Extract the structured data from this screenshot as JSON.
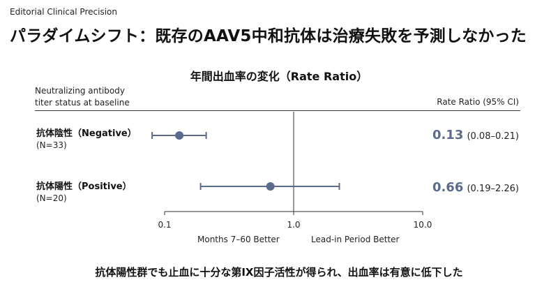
{
  "header": {
    "kicker": "Editorial Clinical Precision",
    "title": "パラダイムシフト：既存のAAV5中和抗体は治療失敗を予測しなかった"
  },
  "chart_data": {
    "type": "forest",
    "title": "年間出血率の変化（Rate Ratio）",
    "left_column_header": "Neutralizing antibody\ntiter status at baseline",
    "right_column_header": "Rate Ratio (95% CI)",
    "x_scale": "log",
    "xlim": [
      0.1,
      10.0
    ],
    "reference_line": 1.0,
    "tick_labels": [
      "0.1",
      "1.0",
      "10.0"
    ],
    "tick_values": [
      0.1,
      1.0,
      10.0
    ],
    "axis_left_label": "Months 7–60 Better",
    "axis_right_label": "Lead-in Period Better",
    "rows": [
      {
        "label": "抗体陰性（Negative）",
        "n": "(N=33)",
        "estimate": 0.13,
        "lower": 0.08,
        "upper": 0.21,
        "estimate_text": "0.13",
        "ci_text": "(0.08–0.21)"
      },
      {
        "label": "抗体陽性（Positive）",
        "n": "(N=20)",
        "estimate": 0.66,
        "lower": 0.19,
        "upper": 2.26,
        "estimate_text": "0.66",
        "ci_text": "(0.19–2.26)"
      }
    ],
    "colors": {
      "marker": "#5b6b8c",
      "estimate_text": "#5b6b8c"
    }
  },
  "conclusion": "抗体陽性群でも止血に十分な第IX因子活性が得られ、出血率は有意に低下した"
}
